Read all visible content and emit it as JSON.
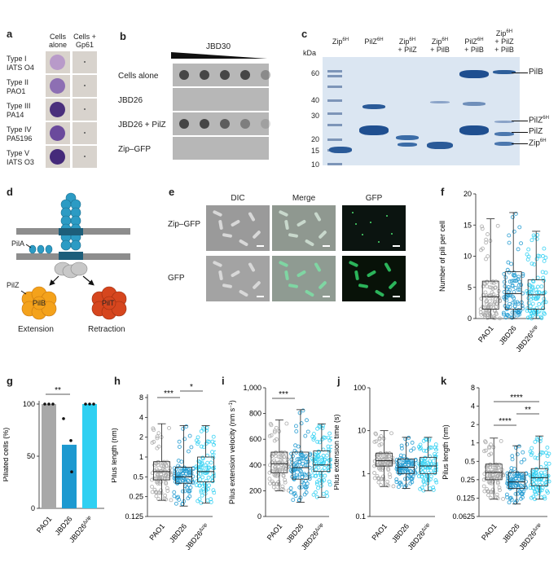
{
  "colors": {
    "grey": "#a8a8a8",
    "blue": "#1d99d0",
    "cyan": "#2fd0f2",
    "plate": "#c9c9c9",
    "gel": "#dbe6f2",
    "band": "#2a5a98",
    "purple": "#5b3a9a",
    "pilB": "#f4a21b",
    "pilT": "#d6461e",
    "teal": "#1d7fa3"
  },
  "panel_a": {
    "label": "a",
    "col_headers": [
      "Cells alone",
      "Cells + Gp61"
    ],
    "rows": [
      {
        "type": "Type I",
        "strain": "IATS O4"
      },
      {
        "type": "Type II",
        "strain": "PAO1"
      },
      {
        "type": "Type III",
        "strain": "PA14"
      },
      {
        "type": "Type IV",
        "strain": "PA5196"
      },
      {
        "type": "Type V",
        "strain": "IATS O3"
      }
    ]
  },
  "panel_b": {
    "label": "b",
    "title": "JBD30",
    "rows": [
      "Cells alone",
      "JBD26",
      "JBD26 + PilZ",
      "Zip–GFP"
    ]
  },
  "panel_c": {
    "label": "c",
    "kda_label": "kDa",
    "kda": [
      "60",
      "40",
      "30",
      "20",
      "15",
      "10"
    ],
    "lanes": [
      [
        "Zip",
        "6H",
        ""
      ],
      [
        "PilZ",
        "6H",
        ""
      ],
      [
        "Zip",
        "6H",
        "+ PilZ"
      ],
      [
        "Zip",
        "6H",
        "+ PilB"
      ],
      [
        "PilZ",
        "6H",
        "+ PilB"
      ],
      [
        "Zip",
        "6H",
        "+ PilZ",
        "+ PilB"
      ]
    ],
    "bands": [
      "PilB",
      "PilZ",
      "6H",
      "PilZ",
      "Zip",
      "6H"
    ]
  },
  "panel_d": {
    "label": "d",
    "pilA": "PilA",
    "pilZ": "PilZ",
    "pilB": "PilB",
    "pilT": "PilT",
    "extension": "Extension",
    "retraction": "Retraction"
  },
  "panel_e": {
    "label": "e",
    "cols": [
      "DIC",
      "Merge",
      "GFP"
    ],
    "rows": [
      "Zip–GFP",
      "GFP"
    ]
  },
  "panel_f": {
    "label": "f",
    "ylabel": "Number of pili per cell",
    "yticks": [
      "0",
      "5",
      "10",
      "15",
      "20"
    ],
    "xcats": [
      "PAO1",
      "JBD26",
      "JBD26"
    ],
    "sup": "Δzip"
  },
  "panel_g": {
    "label": "g",
    "ylabel": "Piliated cells (%)",
    "yticks": [
      "0",
      "50",
      "100"
    ],
    "sig": "**",
    "xcats": [
      "PAO1",
      "JBD26",
      "JBD26"
    ],
    "sup": "Δzip"
  },
  "panel_h": {
    "label": "h",
    "ylabel": "Pilus length (nm)",
    "yticks": [
      "0.125",
      "0.25",
      "0.5",
      "1",
      "2",
      "4",
      "8"
    ],
    "sig": [
      "***",
      "*"
    ],
    "xcats": [
      "PAO1",
      "JBD26",
      "JBD26"
    ],
    "sup": "Δzip"
  },
  "panel_i": {
    "label": "i",
    "ylabel": "Pilus extension velocity (nm s",
    "ylabel_sup": "−1",
    "ylabel_end": ")",
    "yticks": [
      "0",
      "200",
      "400",
      "600",
      "800",
      "1,000"
    ],
    "sig": "***",
    "xcats": [
      "PAO1",
      "JBD26",
      "JBD26"
    ],
    "sup": "Δzip"
  },
  "panel_j": {
    "label": "j",
    "ylabel": "Pilus extension time (s)",
    "yticks": [
      "0.1",
      "1",
      "10",
      "100"
    ],
    "xcats": [
      "PAO1",
      "JBD26",
      "JBD26"
    ],
    "sup": "Δzip"
  },
  "panel_k": {
    "label": "k",
    "ylabel": "Pilus length (nm)",
    "yticks": [
      "0.0625",
      "0.125",
      "0.25",
      "0.5",
      "1",
      "2",
      "4",
      "8"
    ],
    "sig": [
      "****",
      "**",
      "****"
    ],
    "xcats": [
      "PAO1",
      "JBD26",
      "JBD26"
    ],
    "sup": "Δzip"
  },
  "chart_data": [
    {
      "panel": "f",
      "type": "box",
      "categories": [
        "PAO1",
        "JBD26",
        "JBD26Δzip"
      ],
      "ylim": [
        0,
        20
      ],
      "series": [
        {
          "values": {
            "min": 0,
            "q1": 1.5,
            "median": 3.5,
            "q3": 6,
            "max": 16
          }
        },
        {
          "values": {
            "min": 0,
            "q1": 1.5,
            "median": 4,
            "q3": 7.5,
            "max": 17
          }
        },
        {
          "values": {
            "min": 0,
            "q1": 1.5,
            "median": 3.8,
            "q3": 6.2,
            "max": 14
          }
        }
      ]
    },
    {
      "panel": "g",
      "type": "bar",
      "categories": [
        "PAO1",
        "JBD26",
        "JBD26Δzip"
      ],
      "values": [
        100,
        61,
        100
      ],
      "ylim": [
        0,
        100
      ],
      "points": [
        [
          100,
          100,
          100
        ],
        [
          86,
          65,
          35
        ],
        [
          100,
          100,
          100
        ]
      ]
    },
    {
      "panel": "h",
      "type": "box",
      "scale": "log2",
      "categories": [
        "PAO1",
        "JBD26",
        "JBD26Δzip"
      ],
      "ylim": [
        0.125,
        8
      ],
      "series": [
        {
          "values": {
            "min": 0.22,
            "q1": 0.45,
            "median": 0.6,
            "q3": 0.85,
            "max": 3.2
          }
        },
        {
          "values": {
            "min": 0.18,
            "q1": 0.4,
            "median": 0.5,
            "q3": 0.7,
            "max": 3
          }
        },
        {
          "values": {
            "min": 0.2,
            "q1": 0.42,
            "median": 0.6,
            "q3": 1,
            "max": 3
          }
        }
      ]
    },
    {
      "panel": "i",
      "type": "box",
      "categories": [
        "PAO1",
        "JBD26",
        "JBD26Δzip"
      ],
      "ylim": [
        0,
        1000
      ],
      "series": [
        {
          "values": {
            "min": 200,
            "q1": 340,
            "median": 410,
            "q3": 500,
            "max": 750
          }
        },
        {
          "values": {
            "min": 110,
            "q1": 290,
            "median": 380,
            "q3": 500,
            "max": 830
          }
        },
        {
          "values": {
            "min": 150,
            "q1": 350,
            "median": 400,
            "q3": 510,
            "max": 720
          }
        }
      ]
    },
    {
      "panel": "j",
      "type": "box",
      "scale": "log10",
      "categories": [
        "PAO1",
        "JBD26",
        "JBD26Δzip"
      ],
      "ylim": [
        0.1,
        100
      ],
      "series": [
        {
          "values": {
            "min": 0.5,
            "q1": 1.5,
            "median": 2,
            "q3": 3,
            "max": 10
          }
        },
        {
          "values": {
            "min": 0.45,
            "q1": 1,
            "median": 1.4,
            "q3": 2.2,
            "max": 7
          }
        },
        {
          "values": {
            "min": 0.4,
            "q1": 1,
            "median": 1.5,
            "q3": 2.4,
            "max": 7
          }
        }
      ]
    },
    {
      "panel": "k",
      "type": "box",
      "scale": "log2",
      "categories": [
        "PAO1",
        "JBD26",
        "JBD26Δzip"
      ],
      "ylim": [
        0.0625,
        8
      ],
      "series": [
        {
          "values": {
            "min": 0.12,
            "q1": 0.25,
            "median": 0.33,
            "q3": 0.45,
            "max": 1.2
          }
        },
        {
          "values": {
            "min": 0.1,
            "q1": 0.18,
            "median": 0.23,
            "q3": 0.33,
            "max": 0.9
          }
        },
        {
          "values": {
            "min": 0.12,
            "q1": 0.2,
            "median": 0.27,
            "q3": 0.38,
            "max": 1.3
          }
        }
      ]
    }
  ]
}
